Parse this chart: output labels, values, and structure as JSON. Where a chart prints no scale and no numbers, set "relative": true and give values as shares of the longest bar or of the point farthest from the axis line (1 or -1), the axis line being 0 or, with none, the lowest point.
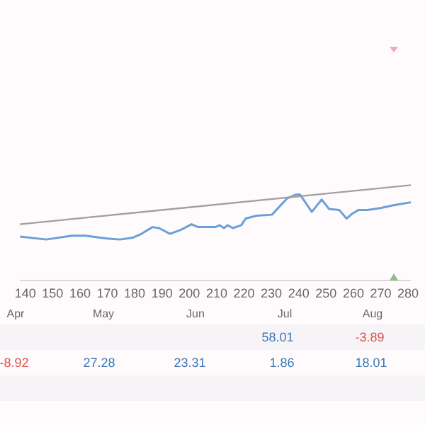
{
  "chart_data": {
    "type": "line",
    "relative": true,
    "xlim": [
      138,
      281
    ],
    "xticks": [
      140,
      150,
      160,
      170,
      180,
      190,
      200,
      210,
      220,
      230,
      240,
      250,
      260,
      270,
      280
    ],
    "tick_labels": "x",
    "legend": false,
    "marker": "none",
    "series": [
      {
        "color": "#6a9fd8",
        "x": [
          138.1,
          147.6,
          157.1,
          161.9,
          169.9,
          174.6,
          179.4,
          182.5,
          186.5,
          188.9,
          192.9,
          196.8,
          200.8,
          203.2,
          209.5,
          211.1,
          212.7,
          214,
          215.9,
          219,
          220.6,
          224.6,
          230.2,
          235.7,
          238.9,
          240.5,
          244.8,
          248.4,
          251.1,
          254.8,
          257.5,
          259.5,
          261.9,
          265.1,
          269.9,
          274.6,
          281
        ],
        "values": [
          0.46,
          0.43,
          0.47,
          0.47,
          0.44,
          0.43,
          0.45,
          0.49,
          0.56,
          0.55,
          0.49,
          0.53,
          0.59,
          0.56,
          0.56,
          0.58,
          0.55,
          0.58,
          0.55,
          0.58,
          0.65,
          0.68,
          0.69,
          0.86,
          0.9,
          0.9,
          0.72,
          0.85,
          0.75,
          0.74,
          0.65,
          0.7,
          0.74,
          0.74,
          0.76,
          0.79,
          0.82
        ]
      },
      {
        "color": "#a0a0a0",
        "x": [
          138,
          281
        ],
        "values": [
          0.59,
          1
        ]
      }
    ],
    "annotations": [
      "Apr",
      "May",
      "Jun",
      "Jul",
      "Aug",
      "58.01",
      "-3.89",
      "-8.92",
      "27.28",
      "23.31",
      "1.86",
      "18.01"
    ]
  }
}
